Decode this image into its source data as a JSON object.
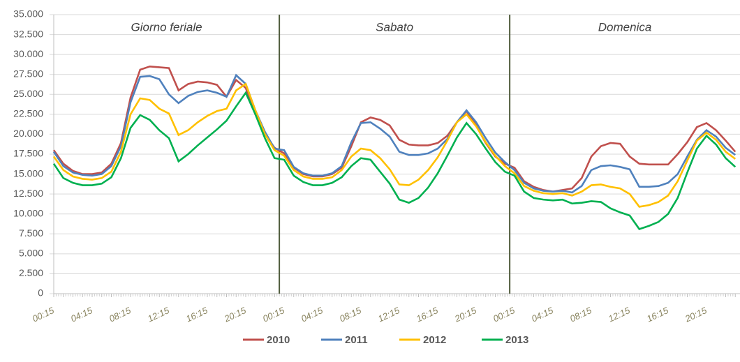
{
  "chart_data": {
    "type": "line",
    "days": [
      "Giorno feriale",
      "Sabato",
      "Domenica"
    ],
    "categories": [
      "00:15",
      null,
      null,
      null,
      "04:15",
      null,
      null,
      null,
      "08:15",
      null,
      null,
      null,
      "12:15",
      null,
      null,
      null,
      "16:15",
      null,
      null,
      null,
      "20:15",
      null,
      null,
      null,
      "00:15",
      null,
      null,
      null,
      "04:15",
      null,
      null,
      null,
      "08:15",
      null,
      null,
      null,
      "12:15",
      null,
      null,
      null,
      "16:15",
      null,
      null,
      null,
      "20:15",
      null,
      null,
      null,
      "00:15",
      null,
      null,
      null,
      "04:15",
      null,
      null,
      null,
      "08:15",
      null,
      null,
      null,
      "12:15",
      null,
      null,
      null,
      "16:15",
      null,
      null,
      null,
      "20:15",
      null,
      null,
      null
    ],
    "series": [
      {
        "name": "2010",
        "color": "#c0504d",
        "values": [
          18000,
          16300,
          15400,
          15000,
          15000,
          15200,
          16300,
          18900,
          24600,
          28100,
          28500,
          28400,
          28300,
          25500,
          26300,
          26600,
          26500,
          26200,
          24700,
          26800,
          25800,
          22500,
          20000,
          18300,
          17600,
          15800,
          15000,
          14700,
          14700,
          15000,
          15800,
          18500,
          21500,
          22100,
          21800,
          21100,
          19300,
          18700,
          18600,
          18600,
          18900,
          19800,
          21500,
          22900,
          21100,
          18900,
          17200,
          16300,
          15800,
          14100,
          13400,
          13000,
          12800,
          13000,
          13200,
          14500,
          17200,
          18500,
          18900,
          18800,
          17200,
          16300,
          16200,
          16200,
          16200,
          17500,
          19000,
          20900,
          21400,
          20500,
          19200,
          17800
        ]
      },
      {
        "name": "2011",
        "color": "#4f81bd",
        "values": [
          17800,
          16000,
          15200,
          14900,
          14800,
          15000,
          16000,
          18500,
          24000,
          27200,
          27300,
          26900,
          25000,
          23900,
          24800,
          25300,
          25500,
          25200,
          24700,
          27400,
          26300,
          23000,
          20300,
          18200,
          18000,
          15900,
          15100,
          14800,
          14800,
          15100,
          16000,
          19000,
          21400,
          21500,
          20700,
          19700,
          17800,
          17400,
          17400,
          17600,
          18200,
          19400,
          21500,
          23000,
          21500,
          19500,
          17700,
          16500,
          15500,
          13900,
          13200,
          12900,
          12800,
          12900,
          12700,
          13500,
          15500,
          16000,
          16100,
          15900,
          15600,
          13400,
          13400,
          13500,
          13900,
          15000,
          17200,
          19300,
          20500,
          19700,
          18300,
          17400
        ]
      },
      {
        "name": "2012",
        "color": "#ffc000",
        "values": [
          17200,
          15500,
          14700,
          14400,
          14300,
          14500,
          15300,
          17800,
          22500,
          24500,
          24300,
          23200,
          22600,
          19900,
          20500,
          21500,
          22300,
          22900,
          23200,
          25500,
          26300,
          23000,
          20000,
          18000,
          17300,
          15500,
          14700,
          14400,
          14400,
          14600,
          15500,
          17200,
          18200,
          18000,
          17000,
          15600,
          13700,
          13600,
          14300,
          15500,
          17100,
          19200,
          21500,
          22500,
          21000,
          19000,
          17300,
          16000,
          15100,
          13500,
          12900,
          12600,
          12500,
          12600,
          12300,
          12800,
          13600,
          13700,
          13400,
          13200,
          12500,
          10900,
          11100,
          11500,
          12300,
          14100,
          16700,
          19200,
          20200,
          19300,
          17800,
          16900
        ]
      },
      {
        "name": "2013",
        "color": "#00b050",
        "values": [
          16300,
          14500,
          13900,
          13600,
          13600,
          13800,
          14600,
          17000,
          20800,
          22400,
          21800,
          20500,
          19500,
          16600,
          17500,
          18600,
          19600,
          20600,
          21700,
          23500,
          25200,
          22500,
          19500,
          17000,
          16800,
          14800,
          14000,
          13600,
          13600,
          13900,
          14600,
          16000,
          17000,
          16800,
          15300,
          13800,
          11800,
          11400,
          12000,
          13300,
          15100,
          17300,
          19600,
          21400,
          20000,
          18200,
          16500,
          15300,
          14800,
          12800,
          12000,
          11800,
          11700,
          11800,
          11300,
          11400,
          11600,
          11500,
          10700,
          10200,
          9800,
          8100,
          8500,
          9000,
          10000,
          12000,
          15200,
          18200,
          19800,
          18700,
          17000,
          15900
        ]
      }
    ],
    "ylim": [
      0,
      35000
    ],
    "yticks": [
      0,
      {
        "value": 2500,
        "label": "2.500"
      },
      {
        "value": 5000,
        "label": "5.000"
      },
      {
        "value": 7500,
        "label": "7.500"
      },
      {
        "value": 10000,
        "label": "10.000"
      },
      {
        "value": 12500,
        "label": "12.500"
      },
      {
        "value": 15000,
        "label": "15.000"
      },
      {
        "value": 17500,
        "label": "17.500"
      },
      {
        "value": 20000,
        "label": "20.000"
      },
      {
        "value": 22500,
        "label": "22.500"
      },
      {
        "value": 25000,
        "label": "25.000"
      },
      {
        "value": 27500,
        "label": "27.500"
      },
      {
        "value": 30000,
        "label": "30.000"
      },
      {
        "value": 32500,
        "label": "32.500"
      },
      {
        "value": 35000,
        "label": "35.000"
      }
    ],
    "grid": true
  }
}
